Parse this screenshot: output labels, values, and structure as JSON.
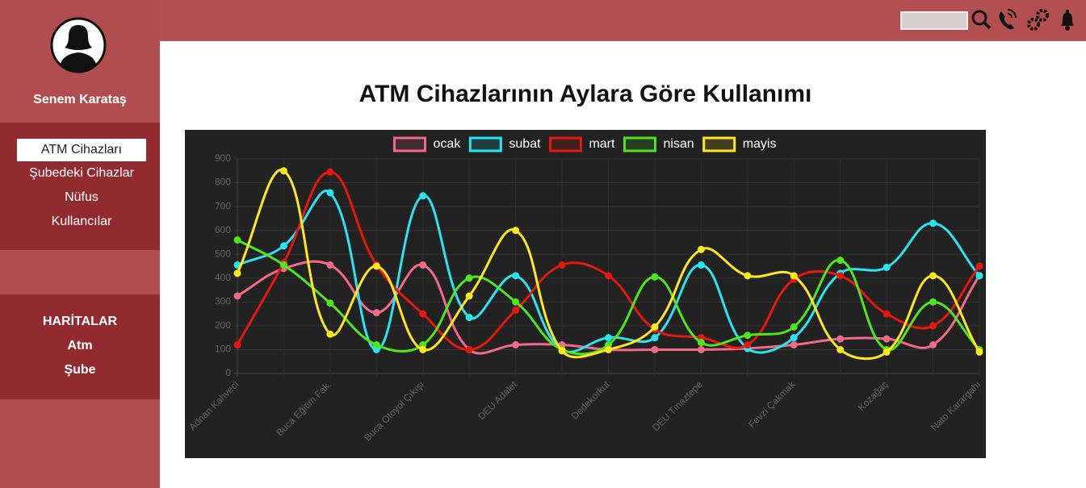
{
  "user": {
    "name": "Senem Karataş"
  },
  "menu": {
    "items": [
      "ATM Cihazları",
      "Şubedeki Cihazlar",
      "Nüfus",
      "Kullancılar"
    ]
  },
  "maps": {
    "title": "HARİTALAR",
    "items": [
      "Atm",
      "Şube"
    ]
  },
  "chart_data": {
    "type": "line",
    "title": "ATM Cihazlarının Aylara Göre Kullanımı",
    "categories": [
      "Adnan Kahveci",
      null,
      "Buca Eğitim Fak.",
      null,
      "Buca Otoyol Çıkışı",
      null,
      "DEU Adalet",
      null,
      "Dedekorkut",
      null,
      "DEU Tınaztepe",
      null,
      "Fevzi Çakmak",
      null,
      "Kozağaç",
      null,
      "Nato Karargahı"
    ],
    "series": [
      {
        "name": "ocak",
        "color": "#f2698a",
        "values": [
          325,
          440,
          455,
          255,
          455,
          100,
          120,
          120,
          100,
          100,
          100,
          105,
          120,
          145,
          145,
          120,
          410
        ]
      },
      {
        "name": "subat",
        "color": "#26e6f2",
        "values": [
          455,
          535,
          758,
          100,
          745,
          235,
          410,
          100,
          150,
          150,
          455,
          105,
          150,
          420,
          445,
          630,
          410
        ]
      },
      {
        "name": "mart",
        "color": "#e6180e",
        "values": [
          120,
          465,
          845,
          455,
          250,
          100,
          265,
          455,
          410,
          185,
          150,
          120,
          395,
          410,
          250,
          200,
          450
        ]
      },
      {
        "name": "nisan",
        "color": "#4fe61c",
        "values": [
          560,
          455,
          295,
          120,
          120,
          400,
          300,
          100,
          120,
          405,
          130,
          160,
          195,
          475,
          100,
          300,
          100
        ]
      },
      {
        "name": "mayis",
        "color": "#ffe81c",
        "values": [
          420,
          850,
          165,
          450,
          100,
          325,
          600,
          95,
          100,
          195,
          520,
          410,
          410,
          100,
          90,
          410,
          90
        ]
      }
    ],
    "ylim": [
      0,
      900
    ],
    "yticks": [
      0,
      100,
      200,
      300,
      400,
      500,
      600,
      700,
      800,
      900
    ],
    "grid": true,
    "legend": "top"
  }
}
